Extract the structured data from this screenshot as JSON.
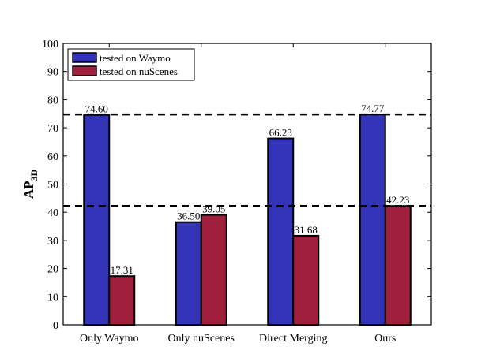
{
  "chart_data": {
    "type": "bar",
    "categories": [
      "Only Waymo",
      "Only nuScenes",
      "Direct Merging",
      "Ours"
    ],
    "series": [
      {
        "name": "tested on Waymo",
        "values": [
          74.6,
          36.5,
          66.23,
          74.77
        ],
        "labels": [
          "74.60",
          "36.50",
          "66.23",
          "74.77"
        ],
        "color": "#3333b8"
      },
      {
        "name": "tested on nuScenes",
        "values": [
          17.31,
          39.05,
          31.68,
          42.23
        ],
        "labels": [
          "17.31",
          "39.05",
          "31.68",
          "42.23"
        ],
        "color": "#a01f3c"
      }
    ],
    "ylabel": "AP",
    "ylabel_sub": "3D",
    "ylim": [
      0,
      100
    ],
    "yticks": [
      0,
      10,
      20,
      30,
      40,
      50,
      60,
      70,
      80,
      90,
      100
    ],
    "reference_lines": [
      74.77,
      42.23
    ],
    "legend": "top-left",
    "grid": false
  }
}
